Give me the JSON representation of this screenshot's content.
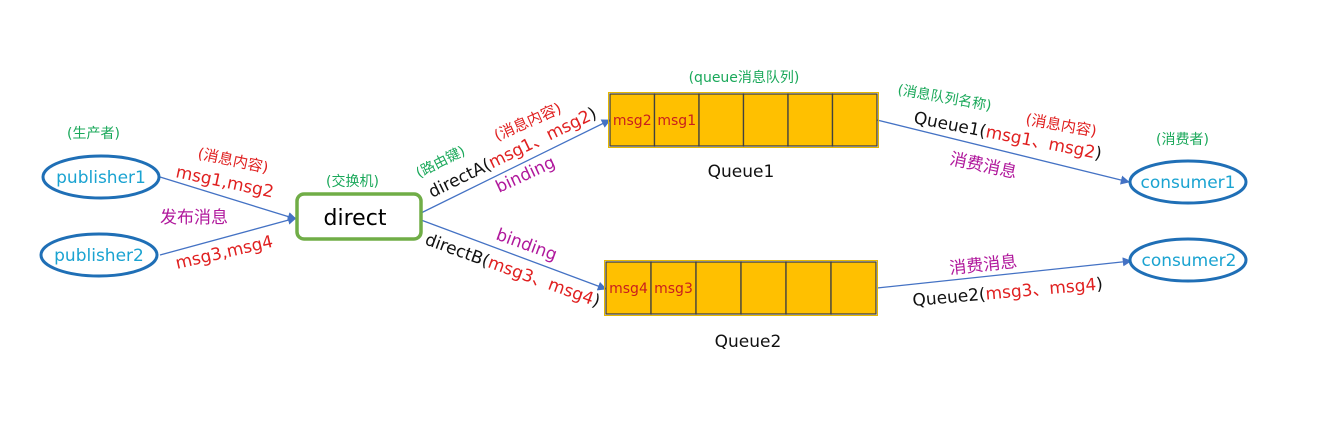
{
  "publishers": {
    "group_label": "(生产者)",
    "p1": "publisher1",
    "p2": "publisher2",
    "p1_note": "(消息内容)",
    "p1_msgs": "msg1,msg2",
    "p2_msgs": "msg3,msg4",
    "publish_label": "发布消息"
  },
  "exchange": {
    "label": "(交换机)",
    "name": "direct"
  },
  "routes": {
    "top_key_note": "(路由键)",
    "top_content_note": "(消息内容)",
    "top_key": "directA(",
    "top_msgs": "msg1、msg2",
    "top_close": ")",
    "top_binding": "binding",
    "bottom_binding": "binding",
    "bottom_key": "directB(",
    "bottom_msgs": "msg3、msg4",
    "bottom_close": ")"
  },
  "queues": {
    "header": "(queue消息队列)",
    "q1_name": "Queue1",
    "q1_cells": [
      "msg2",
      "msg1",
      "",
      "",
      "",
      ""
    ],
    "q2_name": "Queue2",
    "q2_cells": [
      "msg4",
      "msg3",
      "",
      "",
      "",
      ""
    ],
    "fill_color": "#ffc000",
    "border_color": "#404040"
  },
  "consume": {
    "name_note": "(消息队列名称)",
    "content_note": "(消息内容)",
    "q1_label": "Queue1(",
    "q1_msgs": "msg1、msg2",
    "q1_close": ")",
    "q1_action": "消费消息",
    "q2_action": "消费消息",
    "q2_label": "Queue2(",
    "q2_msgs": "msg3、msg4",
    "q2_close": ")"
  },
  "consumers": {
    "group_label": "(消费者)",
    "c1": "consumer1",
    "c2": "consumer2"
  },
  "colors": {
    "ellipse": "#1f6fb6",
    "exchange_border": "#70ad47",
    "arrow": "#4472c4"
  }
}
